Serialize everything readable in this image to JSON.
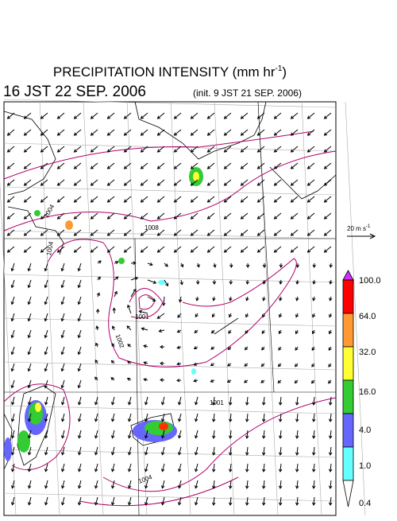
{
  "header": {
    "title": "PRECIPITATION INTENSITY (mm hr",
    "title_unit_exp": "-1",
    "title_close": ")",
    "valid_time": "16 JST 22 SEP. 2006",
    "init_time": "(init. 9 JST 21 SEP. 2006)"
  },
  "wind_legend": {
    "label": "20 m s",
    "label_exp": "-1"
  },
  "colorbar": {
    "labels": [
      "100.0",
      "64.0",
      "32.0",
      "16.0",
      "4.0",
      "1.0",
      "0.4"
    ]
  },
  "contour_labels": [
    "1004",
    "1008",
    "1004",
    "1001",
    "1002",
    "1001",
    "1004"
  ]
}
